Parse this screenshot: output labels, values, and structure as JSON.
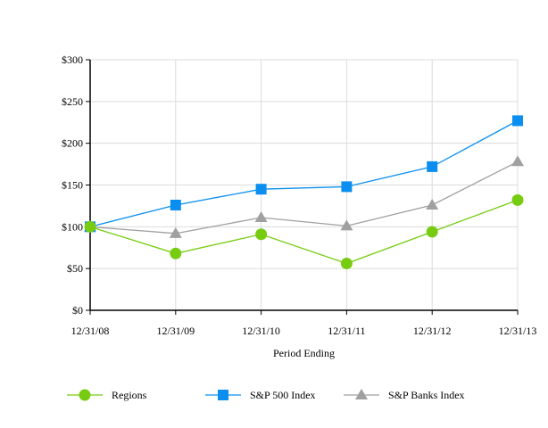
{
  "chart_data": {
    "type": "line",
    "title": "",
    "xlabel": "Period Ending",
    "ylabel": "",
    "categories": [
      "12/31/08",
      "12/31/09",
      "12/31/10",
      "12/31/11",
      "12/31/12",
      "12/31/13"
    ],
    "y_ticks": [
      0,
      50,
      100,
      150,
      200,
      250,
      300
    ],
    "y_tick_labels": [
      "$0",
      "$50",
      "$100",
      "$150",
      "$200",
      "$250",
      "$300"
    ],
    "ylim": [
      0,
      300
    ],
    "grid": true,
    "legend_position": "bottom",
    "series": [
      {
        "name": "Regions",
        "values": [
          100,
          68,
          91,
          56,
          94,
          132
        ],
        "color": "#77cc11",
        "marker": "circle"
      },
      {
        "name": "S&P 500 Index",
        "values": [
          100,
          126,
          145,
          148,
          172,
          227
        ],
        "color": "#0a8ff0",
        "marker": "square"
      },
      {
        "name": "S&P Banks Index",
        "values": [
          100,
          92,
          111,
          101,
          126,
          178
        ],
        "color": "#a0a0a0",
        "marker": "triangle"
      }
    ]
  }
}
